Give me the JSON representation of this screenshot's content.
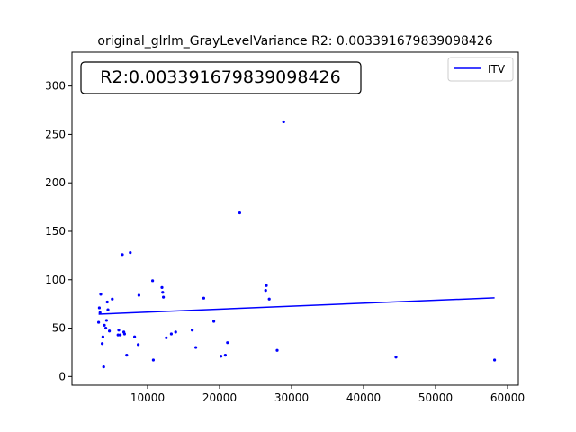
{
  "chart_data": {
    "type": "scatter",
    "title": "original_glrlm_GrayLevelVariance R2: 0.003391679839098426",
    "annotation": "R2:0.003391679839098426",
    "xlabel": "",
    "ylabel": "",
    "xlim": [
      -500,
      61500
    ],
    "ylim": [
      -9,
      335
    ],
    "xticks": [
      10000,
      20000,
      30000,
      40000,
      50000,
      60000
    ],
    "xtick_labels": [
      "10000",
      "20000",
      "30000",
      "40000",
      "50000",
      "60000"
    ],
    "yticks": [
      0,
      50,
      100,
      150,
      200,
      250,
      300
    ],
    "ytick_labels": [
      "0",
      "50",
      "100",
      "150",
      "200",
      "250",
      "300"
    ],
    "grid": false,
    "legend_position": "top-right",
    "colors": {
      "points": "#0000ff",
      "line": "#0000ff"
    },
    "series": [
      {
        "type": "scatter",
        "points": [
          [
            3200,
            56
          ],
          [
            3300,
            71
          ],
          [
            3400,
            66
          ],
          [
            3500,
            85
          ],
          [
            3700,
            34
          ],
          [
            3800,
            41
          ],
          [
            3900,
            10
          ],
          [
            4000,
            53
          ],
          [
            4200,
            50
          ],
          [
            4300,
            58
          ],
          [
            4400,
            77
          ],
          [
            4500,
            69
          ],
          [
            4700,
            47
          ],
          [
            5100,
            80
          ],
          [
            5900,
            43
          ],
          [
            6000,
            48
          ],
          [
            6200,
            43
          ],
          [
            6500,
            126
          ],
          [
            6700,
            46
          ],
          [
            6800,
            44
          ],
          [
            7100,
            22
          ],
          [
            7600,
            128
          ],
          [
            8200,
            41
          ],
          [
            8700,
            33
          ],
          [
            8800,
            84
          ],
          [
            10700,
            99
          ],
          [
            10800,
            17
          ],
          [
            12000,
            92
          ],
          [
            12100,
            87
          ],
          [
            12200,
            82
          ],
          [
            12600,
            40
          ],
          [
            13300,
            44
          ],
          [
            13900,
            46
          ],
          [
            16200,
            48
          ],
          [
            16700,
            30
          ],
          [
            17800,
            81
          ],
          [
            19200,
            57
          ],
          [
            20200,
            21
          ],
          [
            20800,
            22
          ],
          [
            21100,
            35
          ],
          [
            22800,
            169
          ],
          [
            26400,
            89
          ],
          [
            26500,
            94
          ],
          [
            26900,
            80
          ],
          [
            28000,
            27
          ],
          [
            28900,
            263
          ],
          [
            44500,
            20
          ],
          [
            58200,
            17
          ]
        ]
      },
      {
        "type": "line",
        "name": "ITV",
        "x": [
          3200,
          58200
        ],
        "y": [
          64.5,
          81.3
        ]
      }
    ]
  }
}
